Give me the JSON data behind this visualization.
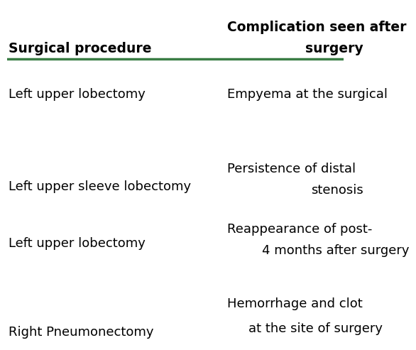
{
  "col1_header": "Surgical procedure",
  "col2_header_line1": "Complication seen after",
  "col2_header_line2": "surgery",
  "rows": [
    {
      "col1": "Left upper lobectomy",
      "col2_line1": "Empyema at the surgical",
      "col2_line2": ""
    },
    {
      "col1": "Left upper sleeve lobectomy",
      "col2_line1": "Persistence of distal",
      "col2_line2": "stenosis"
    },
    {
      "col1": "Left upper lobectomy",
      "col2_line1": "Reappearance of post-",
      "col2_line2": "4 months after surgery"
    },
    {
      "col1": "Right Pneumonectomy",
      "col2_line1": "Hemorrhage and clot",
      "col2_line2": "at the site of surgery"
    }
  ],
  "header_color": "#000000",
  "line_color": "#3a7d44",
  "bg_color": "#ffffff",
  "text_color": "#000000",
  "header_fontsize": 13.5,
  "body_fontsize": 13.0
}
